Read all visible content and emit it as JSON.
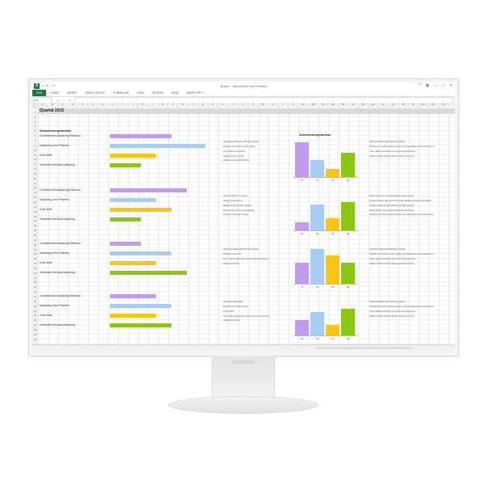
{
  "window": {
    "title": "Book1 - Microsoft Excel Preview",
    "controls": [
      "?",
      "▣",
      "—",
      "▢",
      "✕"
    ]
  },
  "quick_access": {
    "logo": "X",
    "icons": [
      "save-icon",
      "undo-icon",
      "redo-icon"
    ]
  },
  "ribbon": {
    "tabs": [
      "FILE",
      "HOME",
      "INSERT",
      "PAGE LAYOUT",
      "FORMULAS",
      "DATA",
      "REVIEW",
      "VIEW",
      "INSTR PRO 7"
    ],
    "active": "HOME"
  },
  "formula_bar": {
    "name_box": "A1",
    "fx_icons": [
      "✕",
      "✓",
      "fx"
    ]
  },
  "columns": [
    "A",
    "B",
    "C",
    "D",
    "E",
    "F",
    "G",
    "H",
    "I",
    "J",
    "K",
    "L",
    "M",
    "N",
    "O",
    "P",
    "Q",
    "R",
    "S",
    "T",
    "U",
    "V",
    "W",
    "X",
    "Y",
    "Z",
    "AA",
    "AB",
    "AC",
    "AD",
    "AE",
    "AF",
    "AG",
    "AH",
    "AI",
    "AJ",
    "AK",
    "AL",
    "AM",
    "AN",
    "AO"
  ],
  "sheet": {
    "title": "Quartal 2015",
    "left_section_title": "Zwischenergebnisse",
    "right_section_title": "Zwischenergebnisse"
  },
  "colors": {
    "purple": "#c29af0",
    "blue": "#a7cdf5",
    "yellow": "#fbc512",
    "green": "#8bc712",
    "excel_green": "#217346"
  },
  "bar_groups": [
    {
      "items": [
        {
          "label": "Condimentum Adipiscing Ridiculus",
          "value": 0.4,
          "color": "purple"
        },
        {
          "label": "Adipiscing Sem Pharetra",
          "value": 0.62,
          "color": "blue"
        },
        {
          "label": "Cras Amet",
          "value": 0.3,
          "color": "yellow"
        },
        {
          "label": "Venenatis Vehicula Adipiscing",
          "value": 0.2,
          "color": "green"
        }
      ]
    },
    {
      "items": [
        {
          "label": "Condimentum Adipiscing Ridiculus",
          "value": 0.5,
          "color": "purple"
        },
        {
          "label": "Adipiscing Sem Pharetra",
          "value": 0.3,
          "color": "blue"
        },
        {
          "label": "Cras Amet",
          "value": 0.4,
          "color": "yellow"
        },
        {
          "label": "Venenatis Vehicula Adipiscing",
          "value": 0.2,
          "color": "green"
        }
      ]
    },
    {
      "items": [
        {
          "label": "Condimentum Adipiscing Ridiculus",
          "value": 0.2,
          "color": "purple"
        },
        {
          "label": "Adipiscing Sem Pharetra",
          "value": 0.4,
          "color": "blue"
        },
        {
          "label": "Cras Amet",
          "value": 0.3,
          "color": "yellow"
        },
        {
          "label": "Venenatis Vehicula Adipiscing",
          "value": 0.5,
          "color": "green"
        }
      ]
    },
    {
      "items": [
        {
          "label": "Condimentum Adipiscing Ridiculus",
          "value": 0.3,
          "color": "purple"
        },
        {
          "label": "Adipiscing Sem Pharetra",
          "value": 0.4,
          "color": "blue"
        },
        {
          "label": "Cras Amet",
          "value": 0.3,
          "color": "yellow"
        },
        {
          "label": "Venenatis Vehicula Adipiscing",
          "value": 0.4,
          "color": "green"
        }
      ]
    }
  ],
  "notes_mid": [
    [
      "Vulputate Malesuada Ultricies Imaptus",
      "Praesent commodo cursus magna",
      "Cras mattis consectetur",
      "Nullam id dolor id nibh",
      "Nullam id dolor nibh ultrides"
    ],
    [
      "Donec id elit non mi porta",
      "Integer posuere erat",
      "Nullam id dolor id nibh ultricies",
      "Donec id elit non mi porta gravida",
      "Praesent commodo cursus"
    ],
    [
      "Vulputate Malesuada Ultricies Imaptus",
      "Praesent commodo",
      "Cras mattis consectetur purus sit amet fermentum",
      "Nullam id dolor id"
    ],
    [
      "Vulputate Malesuada",
      "Praesent commodo cursus",
      "Cras mattis",
      "Cras mattis consectetur purus sit amet fermentum",
      "Nullam id dolor id"
    ]
  ],
  "notes_right": [
    [
      "Vulputate Malesuada Ultricies Imaptus",
      "Praesent commodo cursus magna, vel scelerisque nisl consectetur et.",
      "Cras mattis consectetur purus sit amet fermentum.",
      "Nullam id dolor id nibh ultricies vehicula ut id elit."
    ],
    [
      "Donec id elit non mi porta gravida at eget metus.",
      "Integer posuere erat a ante venenatis dapibus posuere velit aliquet.",
      "Nullam id dolor id nibh ultricies vehicula ut id elit.",
      "Donec id elit non mi porta gravida at eget metus.",
      "Praesent commodo cursus magna, vel scelerisque nisl consectetur et."
    ],
    [
      "Vulputate Malesuada Ultricies Imaptus",
      "Praesent commodo cursus magna, vel scelerisque nisl consectetur et.",
      "Cras mattis consectetur purus sit amet fermentum.",
      "Nullam id dolor id nibh ultricies vehicula ut id elit."
    ],
    [
      "Vulputate Malesuada Ultricies Imaptus",
      "Praesent commodo cursus magna, vel scelerisque nisl consectetur et.",
      "Cras mattis consectetur purus sit amet fermentum.",
      "Nullam id dolor id nibh ultricies vehicula ut id elit."
    ]
  ],
  "chart_data": [
    {
      "type": "bar",
      "categories": [
        "Q1",
        "Q2",
        "Q3",
        "Q4"
      ],
      "values": [
        40,
        20,
        10,
        28
      ],
      "colors": [
        "purple",
        "blue",
        "yellow",
        "green"
      ]
    },
    {
      "type": "bar",
      "categories": [
        "Q1",
        "Q2",
        "Q3",
        "Q4"
      ],
      "values": [
        10,
        30,
        15,
        33
      ],
      "colors": [
        "purple",
        "blue",
        "yellow",
        "green"
      ]
    },
    {
      "type": "bar",
      "categories": [
        "Q1",
        "Q2",
        "Q3",
        "Q4"
      ],
      "values": [
        25,
        40,
        33,
        25
      ],
      "colors": [
        "purple",
        "blue",
        "yellow",
        "green"
      ]
    },
    {
      "type": "bar",
      "categories": [
        "Q1",
        "Q2",
        "Q3",
        "Q4"
      ],
      "values": [
        18,
        27,
        13,
        31
      ],
      "colors": [
        "purple",
        "blue",
        "yellow",
        "green"
      ]
    }
  ]
}
